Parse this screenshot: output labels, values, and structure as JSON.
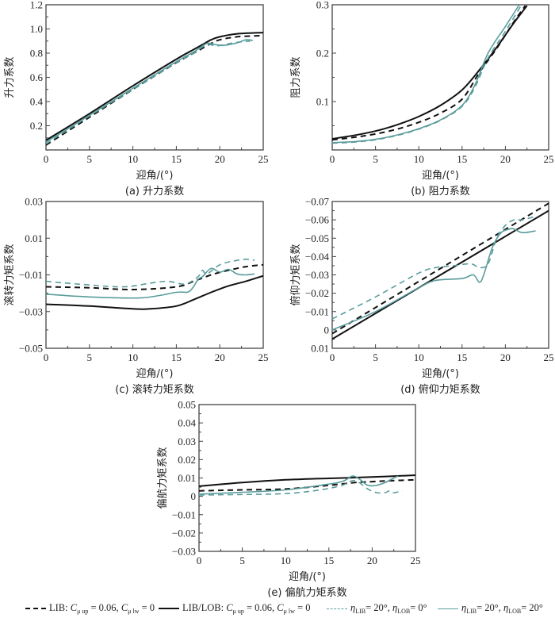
{
  "colors": {
    "black": "#111111",
    "teal": "#5a9c9c",
    "frame": "#444444"
  },
  "legend": [
    {
      "id": "lib",
      "style": "dashed",
      "color": "#111111",
      "prefix": "LIB: ",
      "c1": "C",
      "c1sub": "μ up",
      "eq1": " = 0.06, ",
      "c2": "C",
      "c2sub": "μ lw",
      "eq2": " = 0"
    },
    {
      "id": "liblob",
      "style": "solid",
      "color": "#111111",
      "prefix": "LIB/LOB: ",
      "c1": "C",
      "c1sub": "μ up",
      "eq1": " = 0.06, ",
      "c2": "C",
      "c2sub": "μ lw",
      "eq2": " = 0"
    },
    {
      "id": "eta20_0",
      "style": "dashed",
      "color": "#5a9c9c",
      "eta": "η",
      "s1": "LIB",
      "v1": "= 20°, ",
      "s2": "LOB",
      "v2": "= 0°"
    },
    {
      "id": "eta20_20",
      "style": "solid",
      "color": "#5a9c9c",
      "eta": "η",
      "s1": "LIB",
      "v1": "= 20°, ",
      "s2": "LOB",
      "v2": "= 20°"
    }
  ],
  "chart_data": [
    {
      "type": "line",
      "panel": "a",
      "caption": "(a) 升力系数",
      "xlabel": "迎角/(°)",
      "ylabel": "升力系数",
      "xlim": [
        0,
        25
      ],
      "ylim": [
        0,
        1.2
      ],
      "xticks": [
        0,
        5,
        10,
        15,
        20,
        25
      ],
      "yticks": [
        0.2,
        0.4,
        0.6,
        0.8,
        1.0,
        1.2
      ],
      "ytick_labels": [
        "0.2",
        "0.4",
        "0.6",
        "0.8",
        "1.0",
        "1.2"
      ],
      "series": [
        {
          "name": "LIB",
          "x": [
            0,
            5,
            10,
            15,
            17,
            18,
            19,
            20,
            22,
            25
          ],
          "y": [
            0.04,
            0.27,
            0.5,
            0.72,
            0.8,
            0.84,
            0.88,
            0.91,
            0.935,
            0.945
          ]
        },
        {
          "name": "LIB/LOB",
          "x": [
            0,
            5,
            10,
            15,
            17,
            18,
            19,
            20,
            22,
            25
          ],
          "y": [
            0.08,
            0.3,
            0.53,
            0.75,
            0.83,
            0.87,
            0.91,
            0.935,
            0.96,
            0.97
          ]
        },
        {
          "name": "eta20_0",
          "x": [
            0,
            5,
            10,
            15,
            17,
            18.5,
            19.5,
            20.5,
            22,
            23.5
          ],
          "y": [
            0.05,
            0.28,
            0.5,
            0.72,
            0.8,
            0.87,
            0.86,
            0.87,
            0.89,
            0.9
          ]
        },
        {
          "name": "eta20_20",
          "x": [
            0,
            5,
            10,
            15,
            17,
            18.5,
            19.5,
            20.5,
            22,
            23,
            23.8
          ],
          "y": [
            0.065,
            0.285,
            0.51,
            0.73,
            0.81,
            0.88,
            0.87,
            0.865,
            0.885,
            0.91,
            0.905
          ]
        }
      ]
    },
    {
      "type": "line",
      "panel": "b",
      "caption": "(b) 阻力系数",
      "xlabel": "迎角/(°)",
      "ylabel": "阻力系数",
      "xlim": [
        0,
        25
      ],
      "ylim": [
        0,
        0.3
      ],
      "xticks": [
        0,
        5,
        10,
        15,
        20,
        25
      ],
      "yticks": [
        0.1,
        0.2,
        0.3
      ],
      "ytick_labels": [
        "0.1",
        "0.2",
        "0.3"
      ],
      "series": [
        {
          "name": "LIB",
          "x": [
            0,
            2.5,
            5,
            7.5,
            10,
            12.5,
            15,
            17,
            19,
            21,
            22.3
          ],
          "y": [
            0.021,
            0.026,
            0.033,
            0.043,
            0.057,
            0.076,
            0.105,
            0.16,
            0.21,
            0.265,
            0.298
          ]
        },
        {
          "name": "LIB/LOB",
          "x": [
            0,
            2.5,
            5,
            7.5,
            10,
            12.5,
            15,
            17,
            19,
            21,
            22.5
          ],
          "y": [
            0.023,
            0.03,
            0.039,
            0.052,
            0.069,
            0.092,
            0.124,
            0.165,
            0.212,
            0.263,
            0.298
          ]
        },
        {
          "name": "eta20_0",
          "x": [
            0,
            2.5,
            5,
            7.5,
            10,
            12.5,
            15,
            16.5,
            18,
            20,
            21.8
          ],
          "y": [
            0.014,
            0.016,
            0.021,
            0.03,
            0.043,
            0.061,
            0.09,
            0.13,
            0.19,
            0.245,
            0.298
          ]
        },
        {
          "name": "eta20_20",
          "x": [
            0,
            2.5,
            5,
            7.5,
            10,
            12.5,
            15,
            16.5,
            18,
            20,
            21.6
          ],
          "y": [
            0.015,
            0.017,
            0.022,
            0.031,
            0.044,
            0.062,
            0.092,
            0.135,
            0.2,
            0.255,
            0.3
          ]
        }
      ]
    },
    {
      "type": "line",
      "panel": "c",
      "caption": "(c) 滚转力矩系数",
      "xlabel": "迎角/(°)",
      "ylabel": "滚转力矩系数",
      "xlim": [
        0,
        25
      ],
      "ylim": [
        -0.05,
        0.03
      ],
      "xticks": [
        0,
        5,
        10,
        15,
        20,
        25
      ],
      "yticks": [
        -0.05,
        -0.03,
        -0.01,
        0.01,
        0.03
      ],
      "ytick_labels": [
        "−0.05",
        "−0.03",
        "−0.01",
        "0.01",
        "0.03"
      ],
      "series": [
        {
          "name": "LIB",
          "x": [
            0,
            5,
            10,
            15,
            17,
            19,
            21,
            23,
            25
          ],
          "y": [
            -0.0165,
            -0.017,
            -0.018,
            -0.0165,
            -0.0135,
            -0.01,
            -0.0075,
            -0.0055,
            -0.0045
          ]
        },
        {
          "name": "LIB/LOB",
          "x": [
            0,
            5,
            10,
            12,
            15,
            17,
            19,
            21,
            23,
            25
          ],
          "y": [
            -0.026,
            -0.027,
            -0.0285,
            -0.0285,
            -0.027,
            -0.0235,
            -0.0195,
            -0.016,
            -0.0135,
            -0.0105
          ]
        },
        {
          "name": "eta20_0",
          "x": [
            0,
            5,
            9,
            12,
            14,
            16,
            17.5,
            18,
            18.5,
            20,
            21.5,
            23,
            24
          ],
          "y": [
            -0.0135,
            -0.0155,
            -0.0165,
            -0.0145,
            -0.0135,
            -0.015,
            -0.011,
            -0.0075,
            -0.0095,
            -0.0045,
            -0.0025,
            -0.0015,
            -0.002
          ]
        },
        {
          "name": "eta20_20",
          "x": [
            0,
            5,
            11,
            15,
            16.5,
            17.5,
            18,
            19,
            20,
            21,
            22,
            23,
            24
          ],
          "y": [
            -0.0205,
            -0.022,
            -0.0225,
            -0.0195,
            -0.019,
            -0.0125,
            -0.011,
            -0.0065,
            -0.0085,
            -0.007,
            -0.0095,
            -0.01,
            -0.0095
          ]
        }
      ]
    },
    {
      "type": "line",
      "panel": "d",
      "caption": "(d) 俯仰力矩系数",
      "xlabel": "迎角/(°)",
      "ylabel": "俯仰力矩系数",
      "xlim": [
        0,
        25
      ],
      "ylim": [
        0.01,
        -0.07
      ],
      "xticks": [
        0,
        5,
        10,
        15,
        20,
        25
      ],
      "yticks": [
        0.01,
        0,
        -0.01,
        -0.02,
        -0.03,
        -0.04,
        -0.05,
        -0.06,
        -0.07
      ],
      "ytick_labels": [
        "0.01",
        "0",
        "−0.01",
        "−0.02",
        "−0.03",
        "−0.04",
        "−0.05",
        "−0.06",
        "−0.07"
      ],
      "series": [
        {
          "name": "LIB",
          "x": [
            0,
            25
          ],
          "y": [
            0.002,
            -0.069
          ]
        },
        {
          "name": "LIB/LOB",
          "x": [
            0,
            25
          ],
          "y": [
            0.005,
            -0.065
          ]
        },
        {
          "name": "eta20_0",
          "x": [
            0,
            5,
            10,
            12,
            14,
            16,
            17,
            18,
            19,
            20,
            21,
            22,
            23.5
          ],
          "y": [
            -0.006,
            -0.018,
            -0.031,
            -0.034,
            -0.035,
            -0.036,
            -0.034,
            -0.036,
            -0.05,
            -0.057,
            -0.06,
            -0.06,
            -0.062
          ]
        },
        {
          "name": "eta20_20",
          "x": [
            0,
            5,
            10,
            12,
            15,
            16.3,
            17,
            17.5,
            18.5,
            19.5,
            20.5,
            21,
            22,
            23.5
          ],
          "y": [
            0,
            -0.01,
            -0.023,
            -0.027,
            -0.028,
            -0.03,
            -0.026,
            -0.03,
            -0.045,
            -0.053,
            -0.055,
            -0.055,
            -0.053,
            -0.054
          ]
        }
      ]
    },
    {
      "type": "line",
      "panel": "e",
      "caption": "(e) 偏航力矩系数",
      "xlabel": "迎角/(°)",
      "ylabel": "偏航力矩系数",
      "xlim": [
        0,
        25
      ],
      "ylim": [
        -0.03,
        0.05
      ],
      "xticks": [
        0,
        5,
        10,
        15,
        20,
        25
      ],
      "yticks": [
        -0.03,
        -0.02,
        -0.01,
        0,
        0.01,
        0.02,
        0.03,
        0.04,
        0.05
      ],
      "ytick_labels": [
        "−0.03",
        "−0.02",
        "−0.01",
        "0",
        "0.01",
        "0.02",
        "0.03",
        "0.04",
        "0.05"
      ],
      "series": [
        {
          "name": "LIB",
          "x": [
            0,
            5,
            10,
            15,
            18,
            20,
            22,
            25
          ],
          "y": [
            0.003,
            0.0035,
            0.004,
            0.006,
            0.0075,
            0.008,
            0.0085,
            0.009
          ]
        },
        {
          "name": "LIB/LOB",
          "x": [
            0,
            5,
            10,
            15,
            20,
            25
          ],
          "y": [
            0.0055,
            0.0075,
            0.009,
            0.0098,
            0.0105,
            0.0115
          ]
        },
        {
          "name": "eta20_0",
          "x": [
            0,
            5,
            10,
            14,
            16.5,
            17.7,
            18.5,
            19.5,
            20.5,
            21.5,
            22,
            22.5,
            23.5
          ],
          "y": [
            0.0007,
            0.001,
            0.0015,
            0.0035,
            0.006,
            0.0085,
            0.0075,
            0.004,
            0.002,
            0.002,
            0.003,
            0.002,
            0.003
          ]
        },
        {
          "name": "eta20_20",
          "x": [
            0,
            5,
            10,
            14,
            16.5,
            17.7,
            18.5,
            19.5,
            20.5,
            21.5,
            22.5,
            23
          ],
          "y": [
            0.0012,
            0.0022,
            0.0035,
            0.006,
            0.008,
            0.011,
            0.0095,
            0.006,
            0.006,
            0.0075,
            0.01,
            0.011
          ]
        }
      ]
    }
  ]
}
